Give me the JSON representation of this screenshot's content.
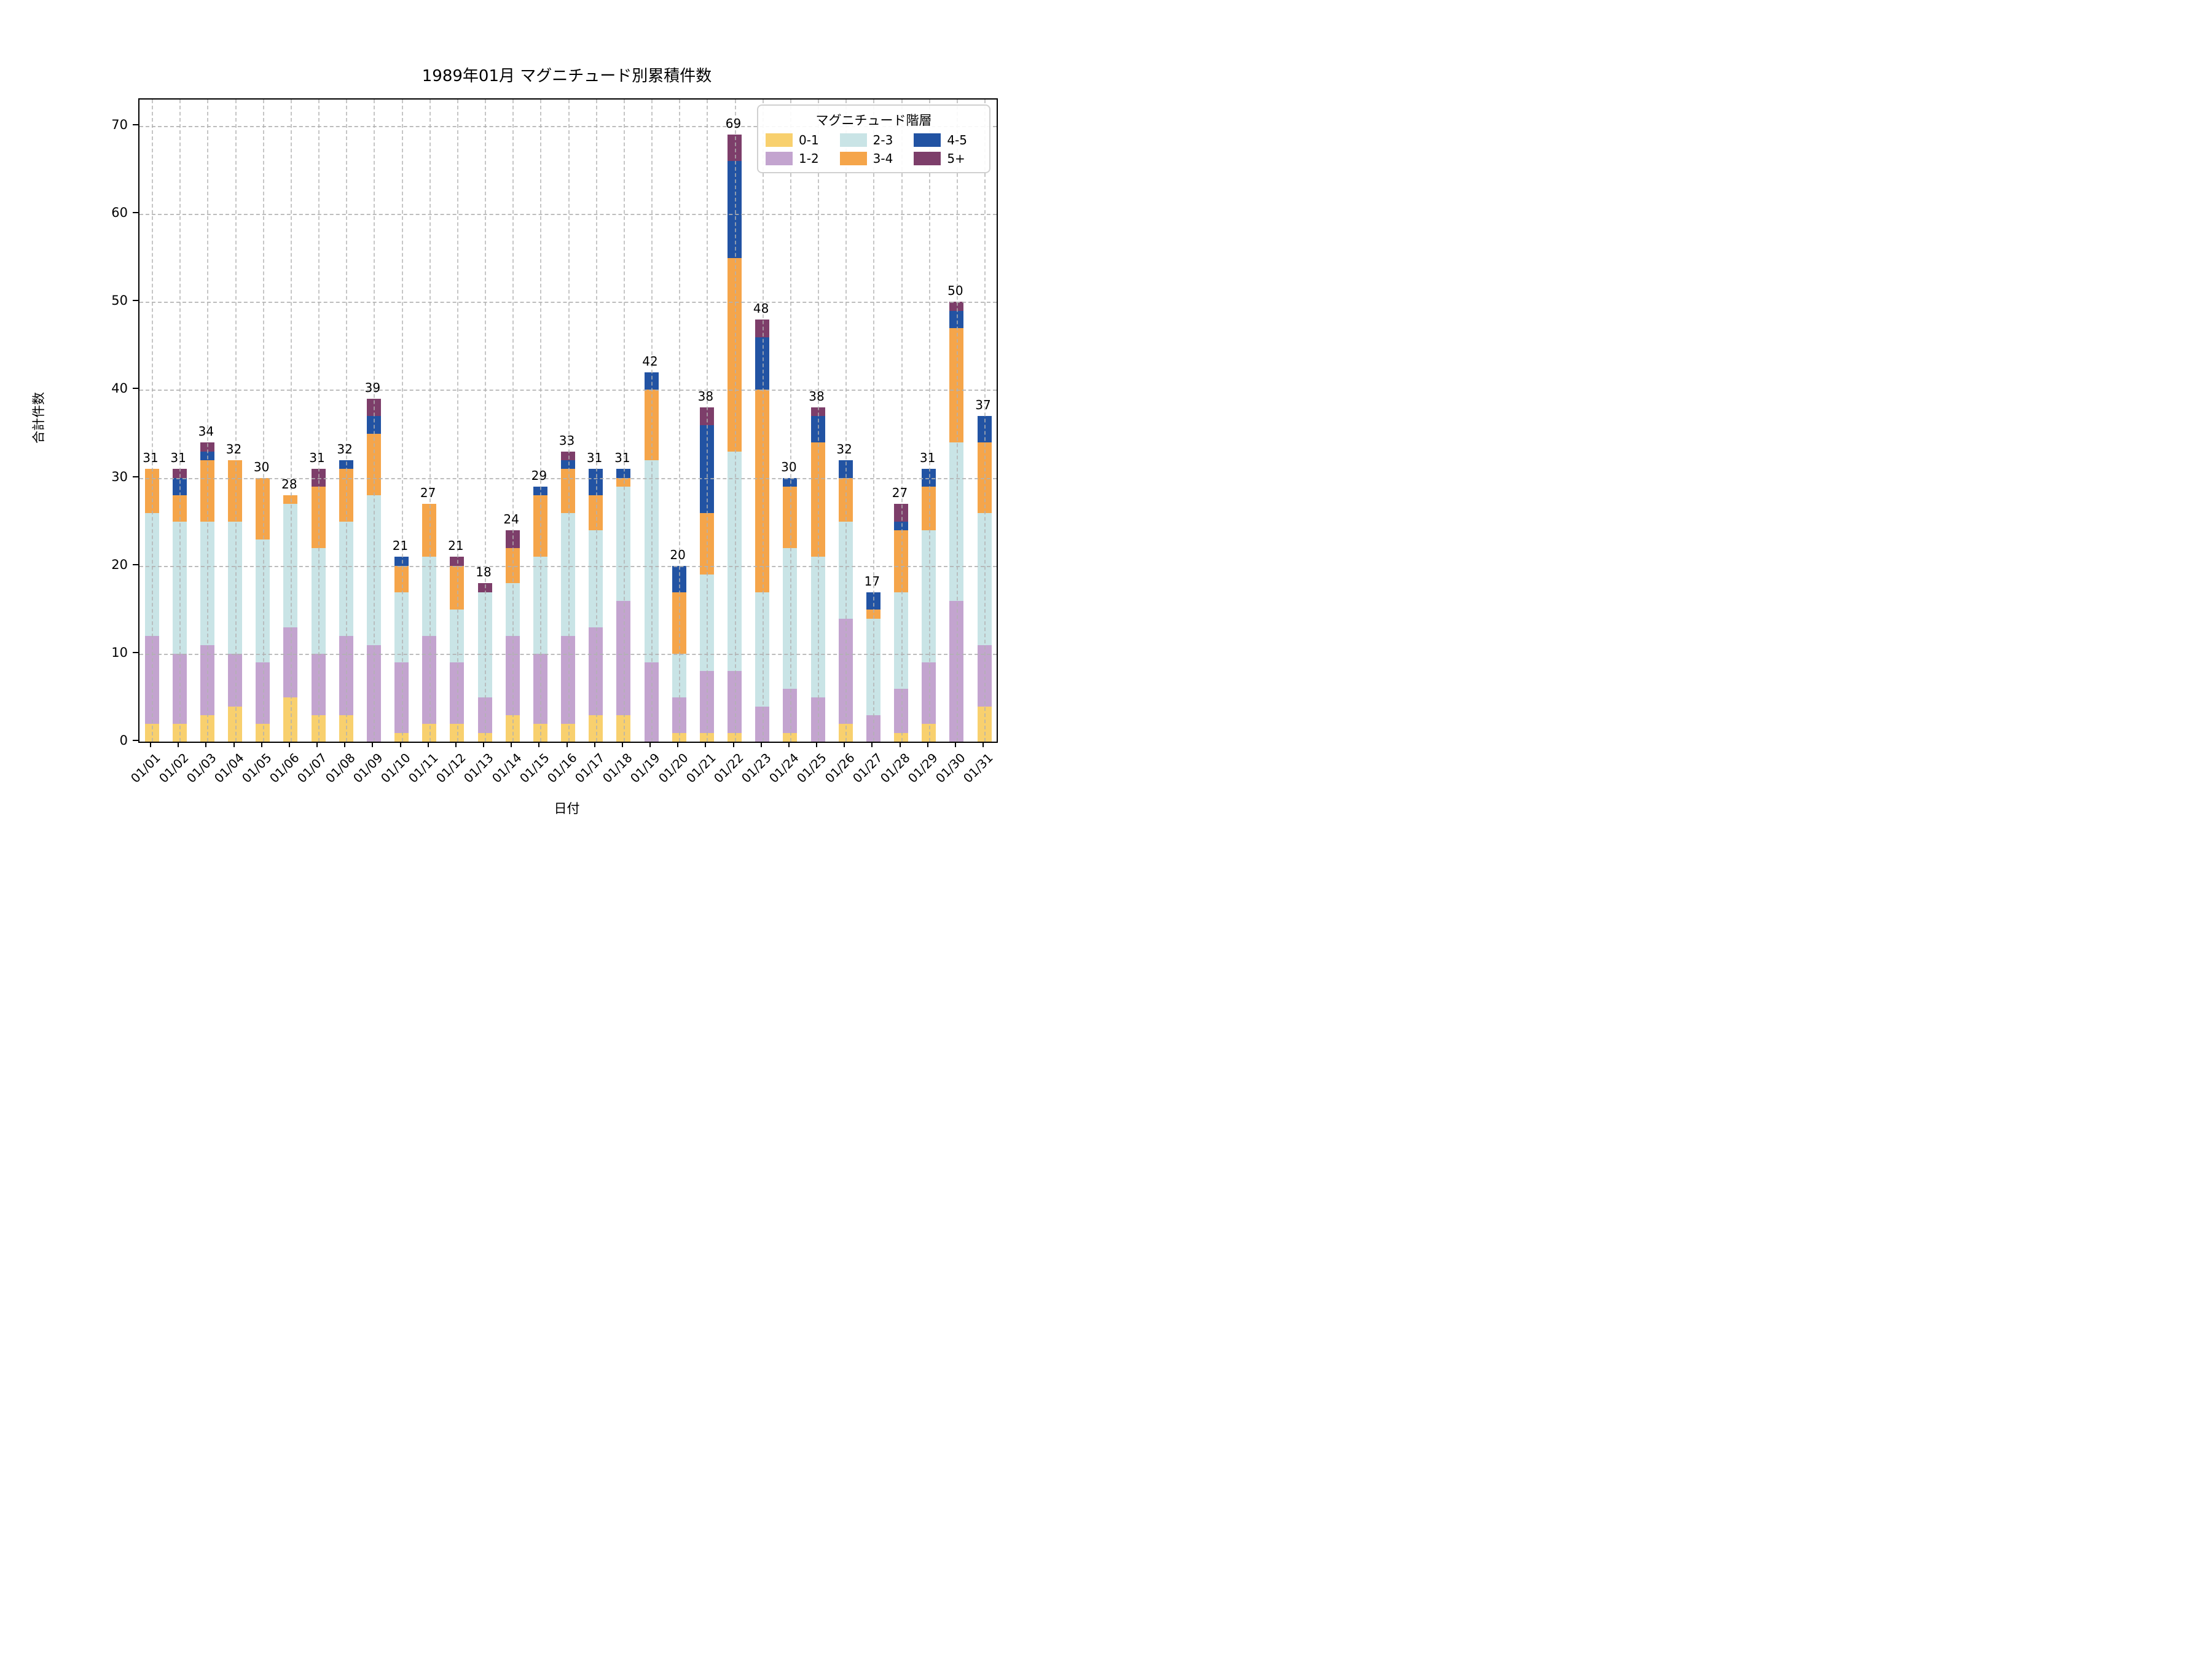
{
  "title": "1989年01月 マグニチュード別累積件数",
  "chart_data": {
    "type": "bar",
    "stacked": true,
    "title": "1989年01月 マグニチュード別累積件数",
    "xlabel": "日付",
    "ylabel": "合計件数",
    "ylim": [
      0,
      73
    ],
    "yticks": [
      0,
      10,
      20,
      30,
      40,
      50,
      60,
      70
    ],
    "grid": "dashed gray, horizontal and vertical, drawn above bars",
    "legend": {
      "title": "マグニチュード階層",
      "position": "upper right",
      "columns": 3
    },
    "categories": [
      "01/01",
      "01/02",
      "01/03",
      "01/04",
      "01/05",
      "01/06",
      "01/07",
      "01/08",
      "01/09",
      "01/10",
      "01/11",
      "01/12",
      "01/13",
      "01/14",
      "01/15",
      "01/16",
      "01/17",
      "01/18",
      "01/19",
      "01/20",
      "01/21",
      "01/22",
      "01/23",
      "01/24",
      "01/25",
      "01/26",
      "01/27",
      "01/28",
      "01/29",
      "01/30",
      "01/31"
    ],
    "series": [
      {
        "name": "0-1",
        "color": "#F8D06E",
        "values": [
          2,
          2,
          3,
          4,
          2,
          5,
          3,
          3,
          0,
          1,
          2,
          2,
          1,
          3,
          2,
          2,
          3,
          3,
          0,
          1,
          1,
          1,
          0,
          1,
          0,
          2,
          0,
          1,
          2,
          0,
          4
        ]
      },
      {
        "name": "1-2",
        "color": "#C3A4CF",
        "values": [
          10,
          8,
          8,
          6,
          7,
          8,
          7,
          9,
          11,
          8,
          10,
          7,
          4,
          9,
          8,
          10,
          10,
          13,
          9,
          4,
          7,
          7,
          4,
          5,
          5,
          12,
          3,
          5,
          7,
          16,
          7
        ]
      },
      {
        "name": "2-3",
        "color": "#C9E4E6",
        "values": [
          14,
          15,
          14,
          15,
          14,
          14,
          12,
          13,
          17,
          8,
          9,
          6,
          12,
          6,
          11,
          14,
          11,
          13,
          23,
          5,
          11,
          25,
          13,
          16,
          16,
          11,
          11,
          11,
          15,
          18,
          15
        ]
      },
      {
        "name": "3-4",
        "color": "#F5A54A",
        "values": [
          5,
          3,
          7,
          7,
          7,
          1,
          7,
          6,
          7,
          3,
          6,
          5,
          0,
          4,
          7,
          5,
          4,
          1,
          8,
          7,
          7,
          22,
          23,
          7,
          13,
          5,
          1,
          7,
          5,
          13,
          8
        ]
      },
      {
        "name": "4-5",
        "color": "#2253A3",
        "values": [
          0,
          2,
          1,
          0,
          0,
          0,
          0,
          1,
          2,
          1,
          0,
          0,
          0,
          0,
          1,
          1,
          3,
          1,
          2,
          3,
          10,
          11,
          6,
          1,
          3,
          2,
          2,
          1,
          2,
          2,
          3
        ]
      },
      {
        "name": "5+",
        "color": "#7D3E6A",
        "values": [
          0,
          1,
          1,
          0,
          0,
          0,
          2,
          0,
          2,
          0,
          0,
          1,
          1,
          2,
          0,
          1,
          0,
          0,
          0,
          0,
          2,
          3,
          2,
          0,
          1,
          0,
          0,
          2,
          0,
          1,
          0
        ]
      }
    ],
    "totals": [
      31,
      31,
      34,
      32,
      30,
      28,
      31,
      32,
      39,
      21,
      27,
      21,
      18,
      24,
      29,
      33,
      31,
      31,
      42,
      20,
      38,
      69,
      48,
      30,
      38,
      32,
      17,
      27,
      31,
      50,
      37
    ],
    "colors": {
      "grid": "#B2B2B2",
      "spine": "#000000",
      "background": "#FFFFFF",
      "text": "#000000"
    }
  }
}
